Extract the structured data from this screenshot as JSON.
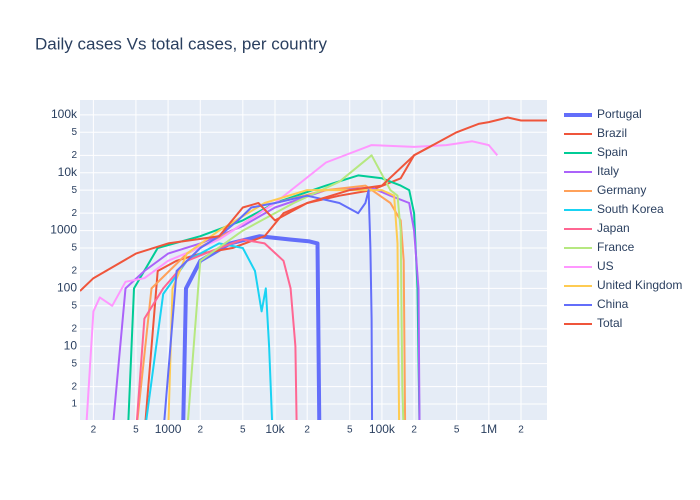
{
  "chart_data": {
    "type": "line",
    "title": "Daily cases Vs total cases, per country",
    "xlog": true,
    "ylog": true,
    "grid": true,
    "legend": "right",
    "xlim": [
      150,
      3500000
    ],
    "ylim": [
      0.53,
      181000
    ],
    "xticks": [
      {
        "value": 200,
        "label": "2"
      },
      {
        "value": 500,
        "label": "5"
      },
      1000,
      {
        "value": 2000,
        "label": "2"
      },
      {
        "value": 5000,
        "label": "5"
      },
      {
        "value": 10000,
        "label": "10k"
      },
      {
        "value": 20000,
        "label": "2"
      },
      {
        "value": 50000,
        "label": "5"
      },
      {
        "value": 100000,
        "label": "100k"
      },
      {
        "value": 200000,
        "label": "2"
      },
      {
        "value": 500000,
        "label": "5"
      },
      {
        "value": 1000000,
        "label": "1M"
      },
      {
        "value": 2000000,
        "label": "2"
      }
    ],
    "yticks": [
      1,
      2,
      5,
      10,
      {
        "value": 20,
        "label": "2"
      },
      {
        "value": 50,
        "label": "5"
      },
      100,
      {
        "value": 200,
        "label": "2"
      },
      {
        "value": 500,
        "label": "5"
      },
      1000,
      {
        "value": 2000,
        "label": "2"
      },
      {
        "value": 5000,
        "label": "5"
      },
      {
        "value": 10000,
        "label": "10k"
      },
      {
        "value": 20000,
        "label": "2"
      },
      {
        "value": 50000,
        "label": "5"
      },
      {
        "value": 100000,
        "label": "100k"
      }
    ],
    "series": [
      {
        "name": "Portugal",
        "color": "#636efa",
        "width": 4,
        "x": [
          1380,
          1470,
          2000,
          3800,
          7200,
          13800,
          21000,
          25000,
          26000
        ],
        "values": [
          0.3,
          100,
          300,
          600,
          800,
          700,
          650,
          600,
          0.3
        ]
      },
      {
        "name": "Brazil",
        "color": "#ef553b",
        "width": 2,
        "x": [
          600,
          800,
          1200,
          2000,
          4000,
          8000,
          12000,
          20000,
          40000,
          80000,
          150000,
          200000,
          300000
        ],
        "values": [
          0.3,
          200,
          300,
          400,
          500,
          800,
          2000,
          3000,
          4000,
          5000,
          8000,
          20000,
          30000
        ]
      },
      {
        "name": "Spain",
        "color": "#00cc96",
        "width": 2,
        "x": [
          420,
          480,
          800,
          2000,
          5000,
          10000,
          30000,
          60000,
          100000,
          150000,
          180000,
          200000,
          215000,
          225000
        ],
        "values": [
          0.3,
          100,
          500,
          800,
          1500,
          3000,
          6000,
          9000,
          8000,
          6000,
          5000,
          2000,
          100,
          0.3
        ]
      },
      {
        "name": "Italy",
        "color": "#ab63fa",
        "width": 2,
        "x": [
          300,
          400,
          600,
          1000,
          2000,
          5000,
          10000,
          30000,
          80000,
          120000,
          180000,
          200000,
          220000,
          225000
        ],
        "values": [
          0.3,
          100,
          200,
          400,
          600,
          1200,
          2500,
          5000,
          5500,
          4000,
          3000,
          1000,
          100,
          0.3
        ]
      },
      {
        "name": "Germany",
        "color": "#ffa15a",
        "width": 2,
        "x": [
          500,
          700,
          1500,
          4000,
          10000,
          30000,
          70000,
          120000,
          150000,
          160000,
          165000
        ],
        "values": [
          0.3,
          100,
          400,
          1000,
          3000,
          5000,
          6000,
          3000,
          1500,
          300,
          0.3
        ]
      },
      {
        "name": "South Korea",
        "color": "#19d3f3",
        "width": 2,
        "x": [
          600,
          900,
          1500,
          3000,
          5000,
          6500,
          7500,
          8200,
          8800,
          9500
        ],
        "values": [
          0.3,
          80,
          300,
          600,
          500,
          200,
          40,
          100,
          10,
          0.3
        ]
      },
      {
        "name": "Japan",
        "color": "#ff6692",
        "width": 2,
        "x": [
          500,
          600,
          900,
          1500,
          3000,
          5000,
          8000,
          12000,
          14000,
          15500,
          16000
        ],
        "values": [
          0.3,
          30,
          100,
          300,
          500,
          700,
          600,
          300,
          100,
          10,
          0.3
        ]
      },
      {
        "name": "France",
        "color": "#b6e880",
        "width": 2,
        "x": [
          1500,
          2000,
          5000,
          15000,
          40000,
          80000,
          120000,
          140000,
          150000,
          155000,
          160000
        ],
        "values": [
          0.3,
          300,
          1000,
          3000,
          7000,
          20000,
          5000,
          4000,
          1000,
          2,
          0.3
        ]
      },
      {
        "name": "US",
        "color": "#ff97ff",
        "width": 2,
        "x": [
          170,
          200,
          230,
          300,
          400,
          600,
          1000,
          3000,
          10000,
          30000,
          80000,
          200000,
          400000,
          700000,
          1000000,
          1200000
        ],
        "values": [
          0.3,
          40,
          70,
          50,
          130,
          150,
          300,
          700,
          3000,
          15000,
          30000,
          28000,
          30000,
          35000,
          30000,
          20000
        ]
      },
      {
        "name": "United Kingdom",
        "color": "#fecb52",
        "width": 2,
        "x": [
          1000,
          1100,
          1500,
          3000,
          8000,
          20000,
          50000,
          100000,
          130000,
          140000,
          145000
        ],
        "values": [
          0.3,
          100,
          400,
          1000,
          3000,
          5000,
          5000,
          5000,
          4000,
          600,
          0.3
        ]
      },
      {
        "name": "China",
        "color": "#636efa",
        "width": 2,
        "x": [
          900,
          1200,
          2000,
          3000,
          4500,
          6000,
          10000,
          20000,
          40000,
          60000,
          70000,
          75000,
          78000,
          80000,
          81000
        ],
        "values": [
          0.3,
          200,
          500,
          800,
          1500,
          2500,
          3000,
          4000,
          3000,
          2000,
          3000,
          5000,
          500,
          30,
          0.3
        ]
      },
      {
        "name": "Total",
        "color": "#ef553b",
        "width": 2,
        "x": [
          150,
          200,
          500,
          1000,
          3000,
          5000,
          7000,
          10000,
          20000,
          50000,
          100000,
          200000,
          300000,
          500000,
          800000,
          1000000,
          1500000,
          2000000,
          3500000
        ],
        "values": [
          90,
          150,
          400,
          600,
          800,
          2500,
          3000,
          1500,
          3000,
          5000,
          6000,
          20000,
          30000,
          50000,
          70000,
          75000,
          90000,
          80000,
          80000
        ]
      }
    ]
  }
}
